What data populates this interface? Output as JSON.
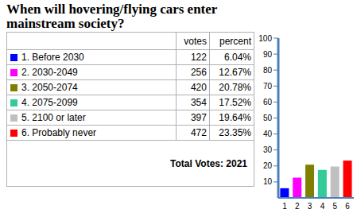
{
  "title": "When will hovering/flying cars enter mainstream society?",
  "table": {
    "header": [
      "votes",
      "percent"
    ],
    "rows": [
      {
        "label": "1. Before 2030",
        "color": "#0000ff",
        "votes": "122",
        "percent": "6.04%"
      },
      {
        "label": "2. 2030-2049",
        "color": "#ff00ff",
        "votes": "256",
        "percent": "12.67%"
      },
      {
        "label": "3. 2050-2074",
        "color": "#808000",
        "votes": "420",
        "percent": "20.78%"
      },
      {
        "label": "4. 2075-2099",
        "color": "#33cc99",
        "votes": "354",
        "percent": "17.52%"
      },
      {
        "label": "5. 2100 or later",
        "color": "#c0c0c0",
        "votes": "397",
        "percent": "19.64%"
      },
      {
        "label": "6. Probably never",
        "color": "#ff0000",
        "votes": "472",
        "percent": "23.35%"
      }
    ],
    "total": "Total Votes: 2021"
  },
  "chart_data": {
    "type": "bar",
    "categories": [
      "1",
      "2",
      "3",
      "4",
      "5",
      "6"
    ],
    "values": [
      6.04,
      12.67,
      20.78,
      17.52,
      19.64,
      23.35
    ],
    "colors": [
      "#0000ff",
      "#ff00ff",
      "#808000",
      "#33cc99",
      "#c0c0c0",
      "#ff0000"
    ],
    "ylim": [
      0,
      100
    ],
    "yticks": [
      10,
      20,
      30,
      40,
      50,
      60,
      70,
      80,
      90,
      100
    ],
    "grid": false
  }
}
